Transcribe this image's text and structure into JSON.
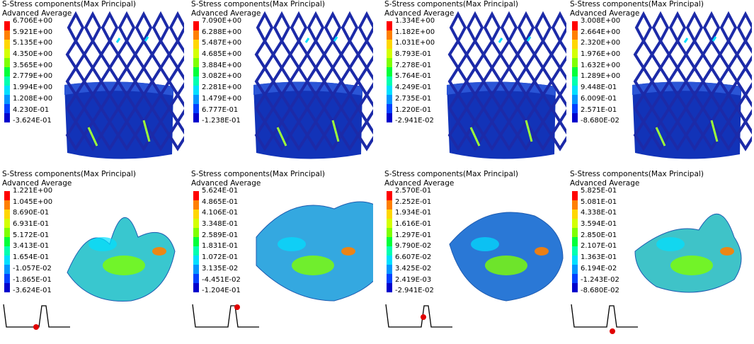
{
  "legend_colors": [
    "#ff0000",
    "#ff7f00",
    "#ffd700",
    "#d4ff00",
    "#7fff00",
    "#00ff3a",
    "#00ffb0",
    "#00e0ff",
    "#0096ff",
    "#0040ff",
    "#0000cc"
  ],
  "panels": [
    {
      "title": "S-Stress components(Max Principal)",
      "subtitle": "Advanced Average",
      "values": [
        "6.706E+00",
        "5.921E+00",
        "5.135E+00",
        "4.350E+00",
        "3.565E+00",
        "2.779E+00",
        "1.994E+00",
        "1.208E+00",
        "4.230E-01",
        "-3.624E-01"
      ],
      "model": "stent",
      "image_id": "stent-model-1"
    },
    {
      "title": "S-Stress components(Max Principal)",
      "subtitle": "Advanced Average",
      "values": [
        "7.090E+00",
        "6.288E+00",
        "5.487E+00",
        "4.685E+00",
        "3.884E+00",
        "3.082E+00",
        "2.281E+00",
        "1.479E+00",
        "6.777E-01",
        "-1.238E-01"
      ],
      "model": "stent",
      "image_id": "stent-model-2"
    },
    {
      "title": "S-Stress components(Max Principal)",
      "subtitle": "Advanced Average",
      "values": [
        "1.334E+00",
        "1.182E+00",
        "1.031E+00",
        "8.793E-01",
        "7.278E-01",
        "5.764E-01",
        "4.249E-01",
        "2.735E-01",
        "1.220E-01",
        "-2.941E-02"
      ],
      "model": "stent",
      "image_id": "stent-model-3"
    },
    {
      "title": "S-Stress components(Max Principal)",
      "subtitle": "Advanced Average",
      "values": [
        "3.008E+00",
        "2.664E+00",
        "2.320E+00",
        "1.976E+00",
        "1.632E+00",
        "1.289E+00",
        "9.448E-01",
        "6.009E-01",
        "2.571E-01",
        "-8.680E-02"
      ],
      "model": "stent",
      "image_id": "stent-model-4"
    },
    {
      "title": "S-Stress components(Max Principal)",
      "subtitle": "Advanced Average",
      "values": [
        "1.221E+00",
        "1.045E+00",
        "8.690E-01",
        "6.931E-01",
        "5.172E-01",
        "3.413E-01",
        "1.654E-01",
        "-1.057E-02",
        "-1.865E-01",
        "-3.624E-01"
      ],
      "model": "leaflet",
      "image_id": "leaflet-model-1",
      "ecg_marker": "baseline-before-peak"
    },
    {
      "title": "S-Stress components(Max Principal)",
      "subtitle": "Advanced Average",
      "values": [
        "5.624E-01",
        "4.865E-01",
        "4.106E-01",
        "3.348E-01",
        "2.589E-01",
        "1.831E-01",
        "1.072E-01",
        "3.135E-02",
        "-4.451E-02",
        "-1.204E-01"
      ],
      "model": "leaflet",
      "image_id": "leaflet-model-2",
      "ecg_marker": "peak-top"
    },
    {
      "title": "S-Stress components(Max Principal)",
      "subtitle": "Advanced Average",
      "values": [
        "2.570E-01",
        "2.252E-01",
        "1.934E-01",
        "1.616E-01",
        "1.297E-01",
        "9.790E-02",
        "6.607E-02",
        "3.425E-02",
        "2.419E-03",
        "-2.941E-02"
      ],
      "model": "leaflet",
      "image_id": "leaflet-model-3",
      "ecg_marker": "peak-descent"
    },
    {
      "title": "S-Stress components(Max Principal)",
      "subtitle": "Advanced Average",
      "values": [
        "5.825E-01",
        "5.081E-01",
        "4.338E-01",
        "3.594E-01",
        "2.850E-01",
        "2.107E-01",
        "1.363E-01",
        "6.194E-02",
        "-1.243E-02",
        "-8.680E-02"
      ],
      "model": "leaflet",
      "image_id": "leaflet-model-4",
      "ecg_marker": "trough-after-peak"
    }
  ]
}
